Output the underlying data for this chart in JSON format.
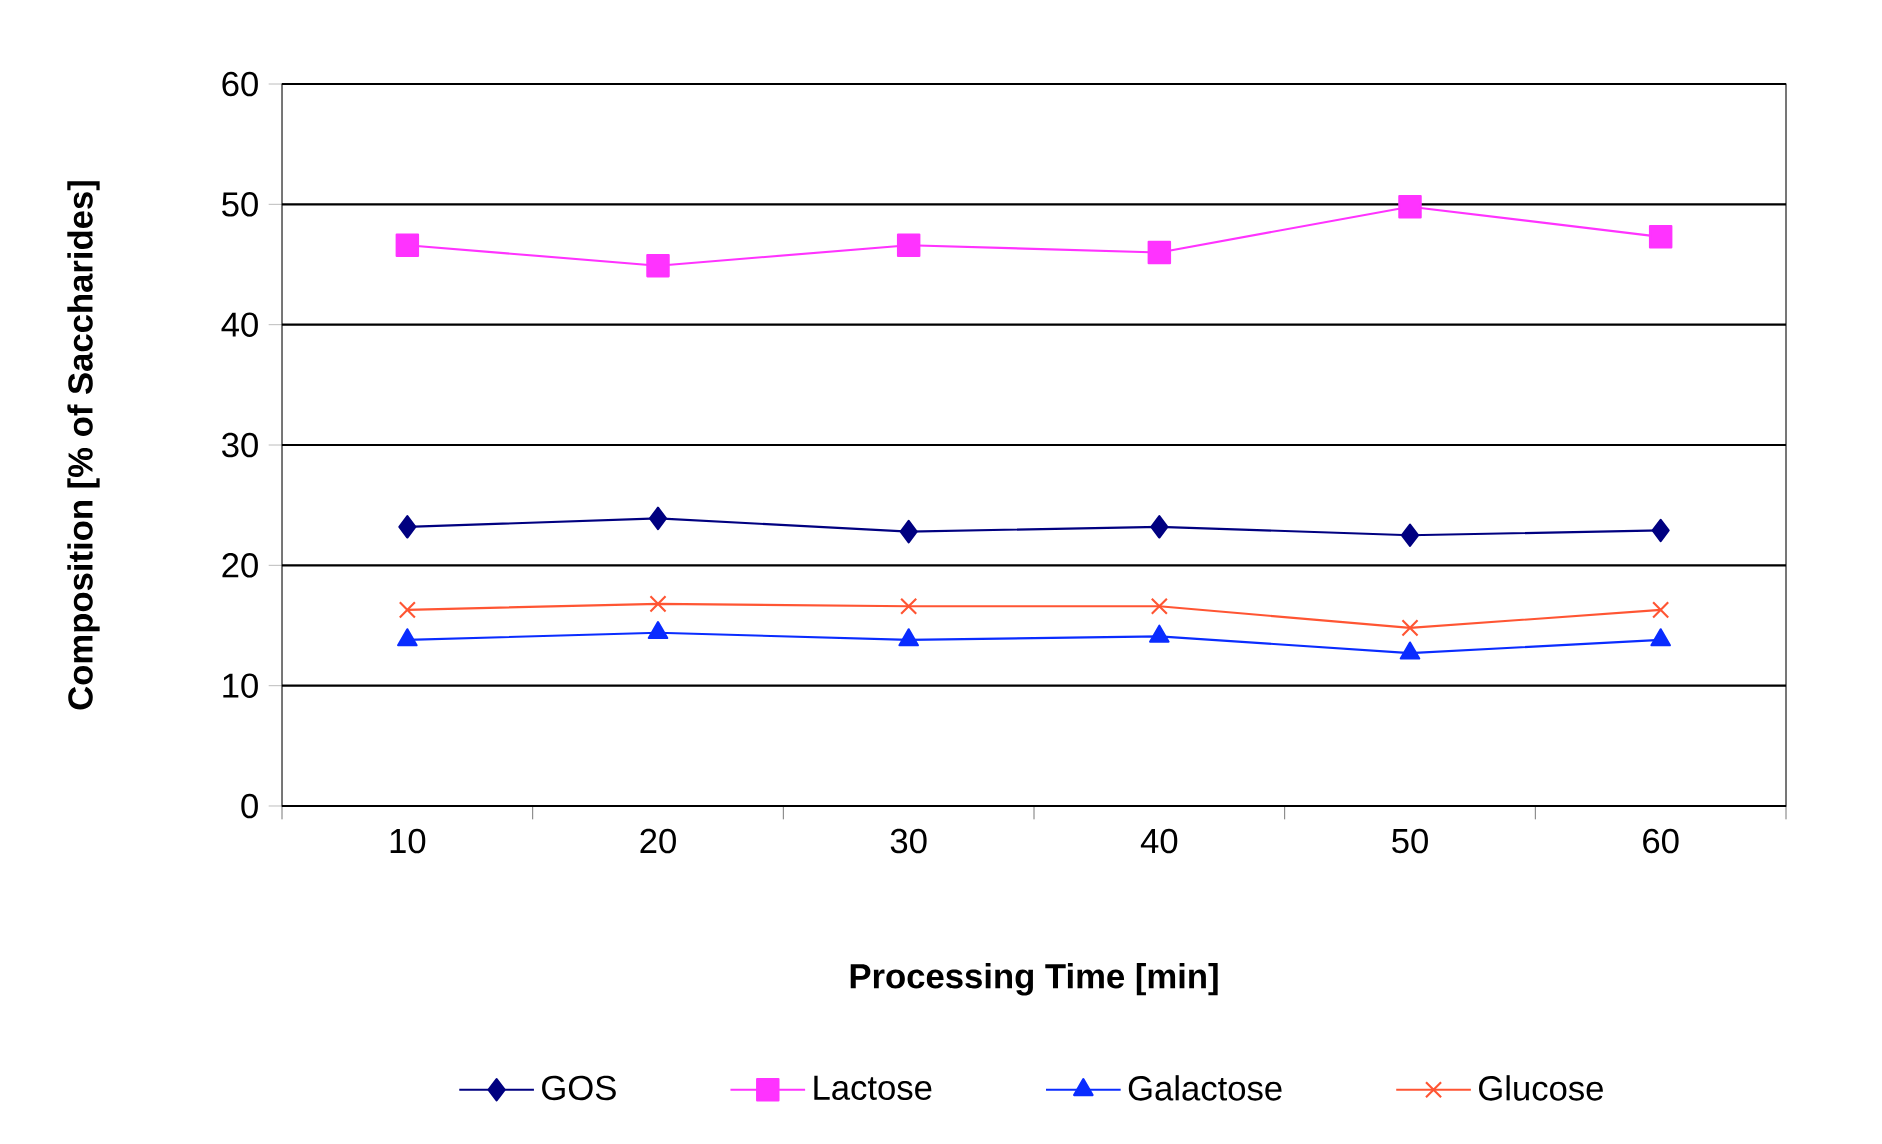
{
  "chart_data": {
    "type": "line",
    "xlabel": "Processing Time [min]",
    "ylabel": "Composition [% of Saccharides]",
    "categories": [
      "10",
      "20",
      "30",
      "40",
      "50",
      "60"
    ],
    "series": [
      {
        "name": "GOS",
        "color": "#000080",
        "marker": "diamond",
        "values": [
          23.2,
          23.9,
          22.8,
          23.2,
          22.5,
          22.9
        ]
      },
      {
        "name": "Lactose",
        "color": "#ff33ff",
        "marker": "square",
        "values": [
          46.6,
          44.9,
          46.6,
          46.0,
          49.8,
          47.3
        ]
      },
      {
        "name": "Galactose",
        "color": "#0a2cff",
        "marker": "triangle",
        "values": [
          13.8,
          14.4,
          13.8,
          14.1,
          12.7,
          13.8
        ]
      },
      {
        "name": "Glucose",
        "color": "#ff5533",
        "marker": "cross",
        "values": [
          16.3,
          16.8,
          16.6,
          16.6,
          14.8,
          16.3
        ]
      }
    ],
    "ylim": [
      0,
      60
    ],
    "yticks": [
      0,
      10,
      20,
      30,
      40,
      50,
      60
    ],
    "grid": "y",
    "legend": "bottom",
    "line_style": "solid"
  }
}
